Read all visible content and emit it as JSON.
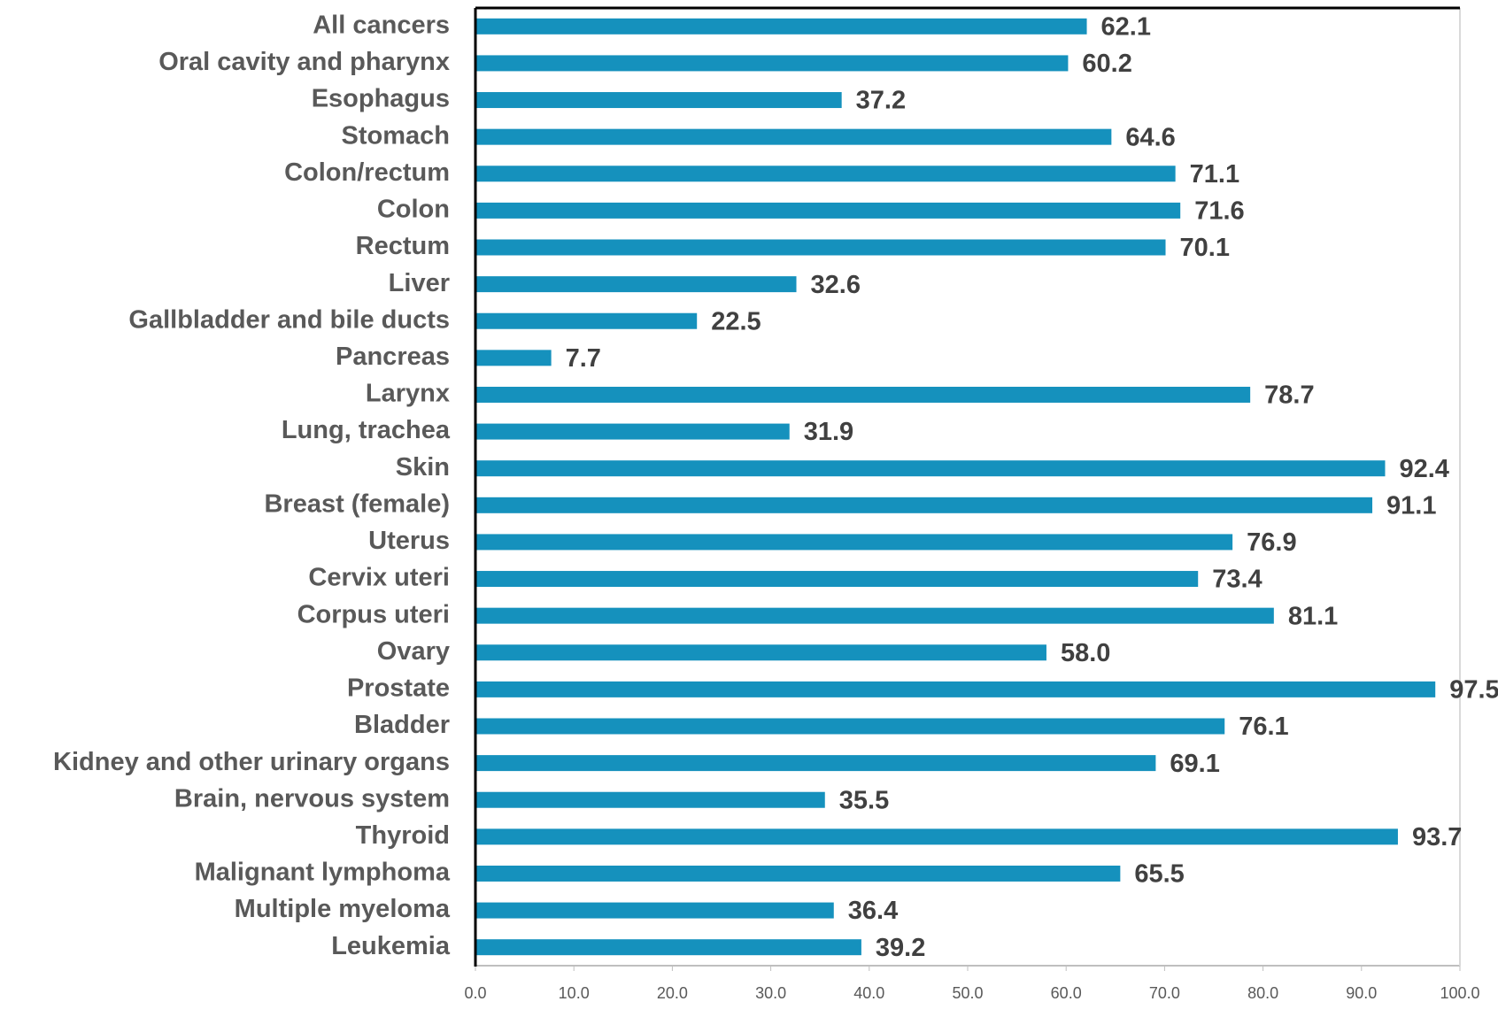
{
  "chart_data": {
    "type": "bar",
    "orientation": "horizontal",
    "categories": [
      "All cancers",
      "Oral cavity and pharynx",
      "Esophagus",
      "Stomach",
      "Colon/rectum",
      "Colon",
      "Rectum",
      "Liver",
      "Gallbladder and bile ducts",
      "Pancreas",
      "Larynx",
      "Lung, trachea",
      "Skin",
      "Breast (female)",
      "Uterus",
      "Cervix uteri",
      "Corpus uteri",
      "Ovary",
      "Prostate",
      "Bladder",
      "Kidney and other urinary organs",
      "Brain, nervous system",
      "Thyroid",
      "Malignant lymphoma",
      "Multiple myeloma",
      "Leukemia"
    ],
    "values": [
      62.1,
      60.2,
      37.2,
      64.6,
      71.1,
      71.6,
      70.1,
      32.6,
      22.5,
      7.7,
      78.7,
      31.9,
      92.4,
      91.1,
      76.9,
      73.4,
      81.1,
      58.0,
      97.5,
      76.1,
      69.1,
      35.5,
      93.7,
      65.5,
      36.4,
      39.2
    ],
    "value_labels": [
      "62.1",
      "60.2",
      "37.2",
      "64.6",
      "71.1",
      "71.6",
      "70.1",
      "32.6",
      "22.5",
      "7.7",
      "78.7",
      "31.9",
      "92.4",
      "91.1",
      "76.9",
      "73.4",
      "81.1",
      "58.0",
      "97.5",
      "76.1",
      "69.1",
      "35.5",
      "93.7",
      "65.5",
      "36.4",
      "39.2"
    ],
    "color": "#1591bd",
    "xlim": [
      0,
      100
    ],
    "xticks": [
      {
        "value": 0,
        "label": "0.0"
      },
      {
        "value": 10,
        "label": "10.0"
      },
      {
        "value": 20,
        "label": "20.0"
      },
      {
        "value": 30,
        "label": "30.0"
      },
      {
        "value": 40,
        "label": "40.0"
      },
      {
        "value": 50,
        "label": "50.0"
      },
      {
        "value": 60,
        "label": "60.0"
      },
      {
        "value": 70,
        "label": "70.0"
      },
      {
        "value": 80,
        "label": "80.0"
      },
      {
        "value": 90,
        "label": "90.0"
      },
      {
        "value": 100,
        "label": "100.0"
      }
    ],
    "grid": false
  }
}
